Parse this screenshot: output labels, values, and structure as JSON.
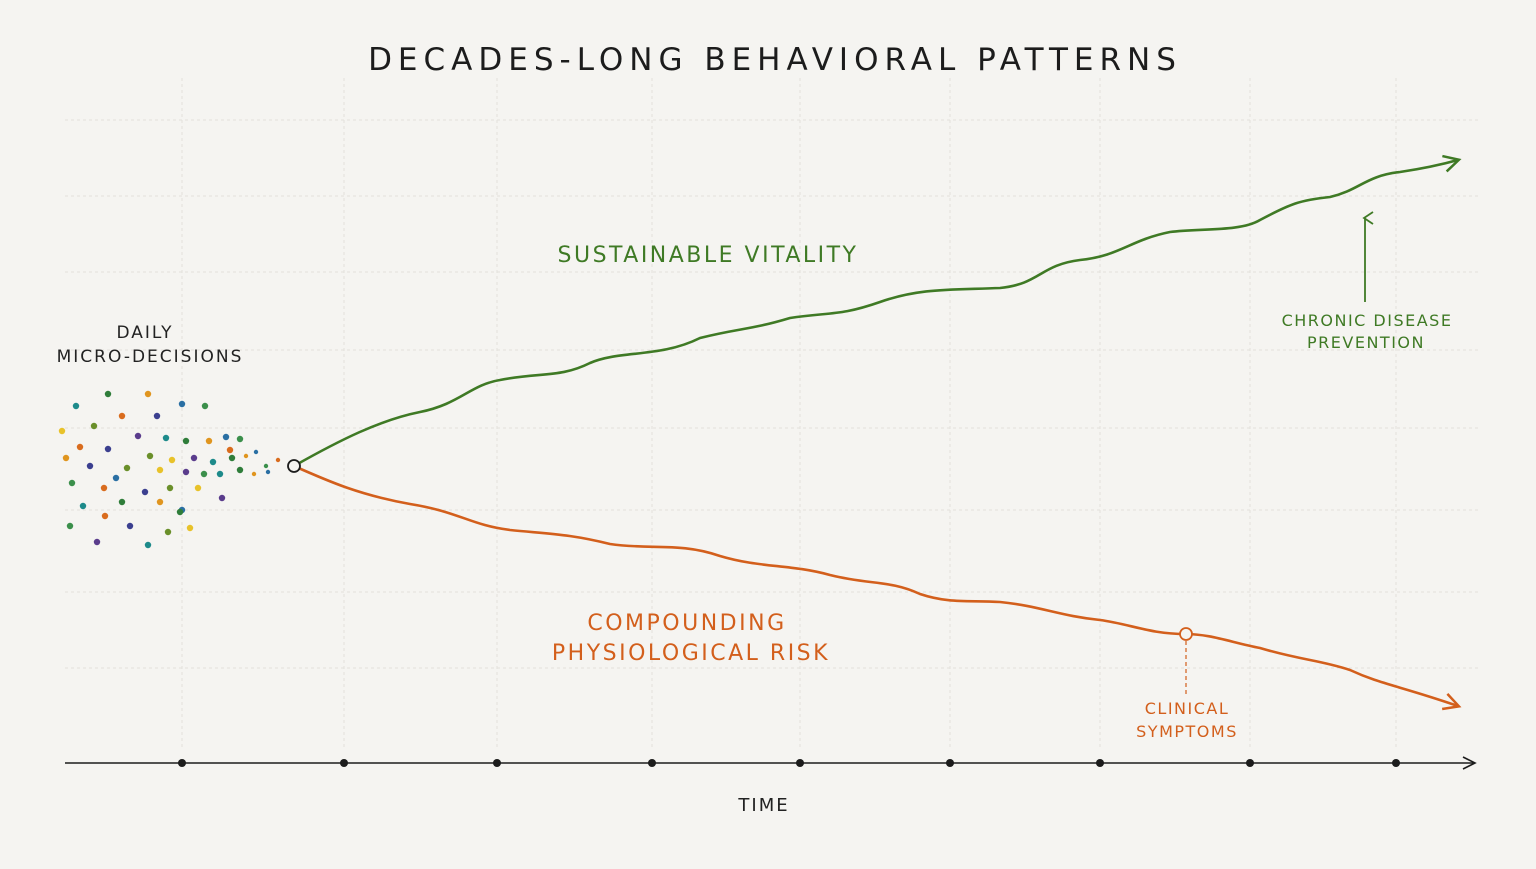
{
  "title": "DECADES-LONG BEHAVIORAL PATTERNS",
  "origin_label": [
    "DAILY",
    "MICRO-DECISIONS"
  ],
  "paths": {
    "positive": {
      "label": "SUSTAINABLE VITALITY",
      "color": "#3f7a25",
      "annotation": [
        "CHRONIC DISEASE",
        "PREVENTION"
      ]
    },
    "negative": {
      "label": [
        "COMPOUNDING",
        "PHYSIOLOGICAL RISK"
      ],
      "color": "#d35f1c",
      "annotation": [
        "CLINICAL",
        "SYMPTOMS"
      ]
    }
  },
  "axis": {
    "label": "TIME",
    "color": "#1c1c1c"
  },
  "dot_palette": [
    "#2f7d3a",
    "#3b8f4b",
    "#6a8f2a",
    "#1d8a8a",
    "#2a6fa3",
    "#3b3f8f",
    "#5a3c8c",
    "#e0951f",
    "#d96c1e",
    "#e8c22a"
  ]
}
